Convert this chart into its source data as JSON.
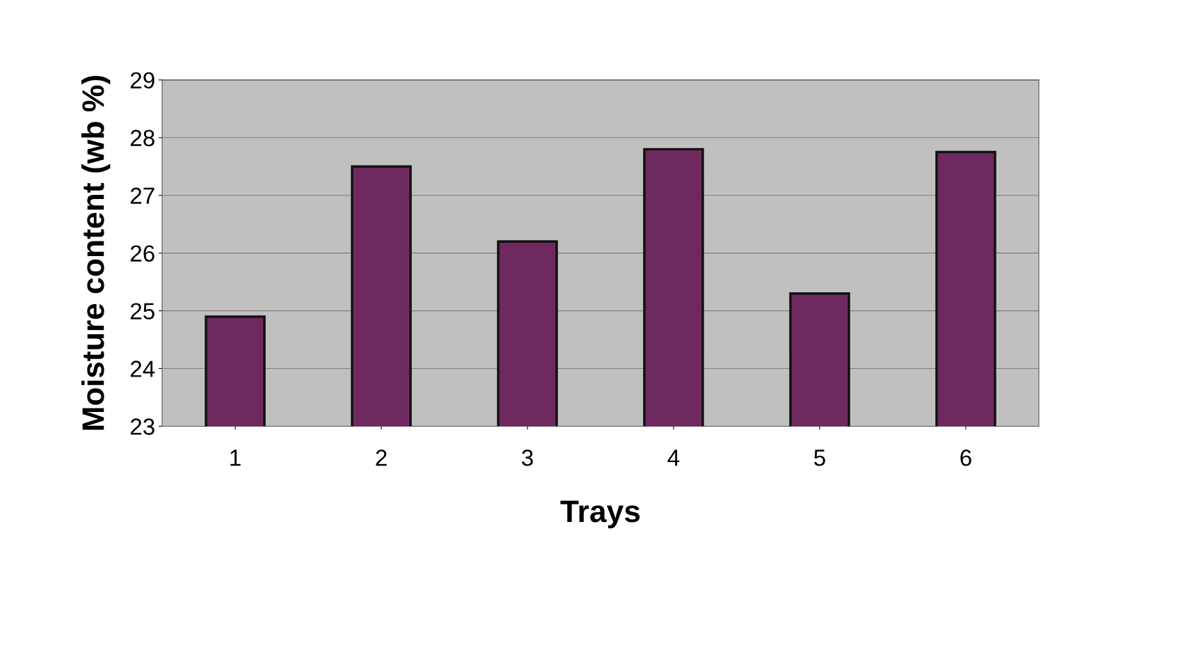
{
  "chart_data": {
    "type": "bar",
    "xlabel": "Trays",
    "ylabel": "Moisture content (wb %)",
    "categories": [
      "1",
      "2",
      "3",
      "4",
      "5",
      "6"
    ],
    "values": [
      24.9,
      27.5,
      26.2,
      27.8,
      25.3,
      27.75
    ],
    "color": "#6e2a5e",
    "ylim": [
      23,
      29
    ],
    "yticks": [
      23,
      24,
      25,
      26,
      27,
      28,
      29
    ],
    "grid": "y"
  }
}
